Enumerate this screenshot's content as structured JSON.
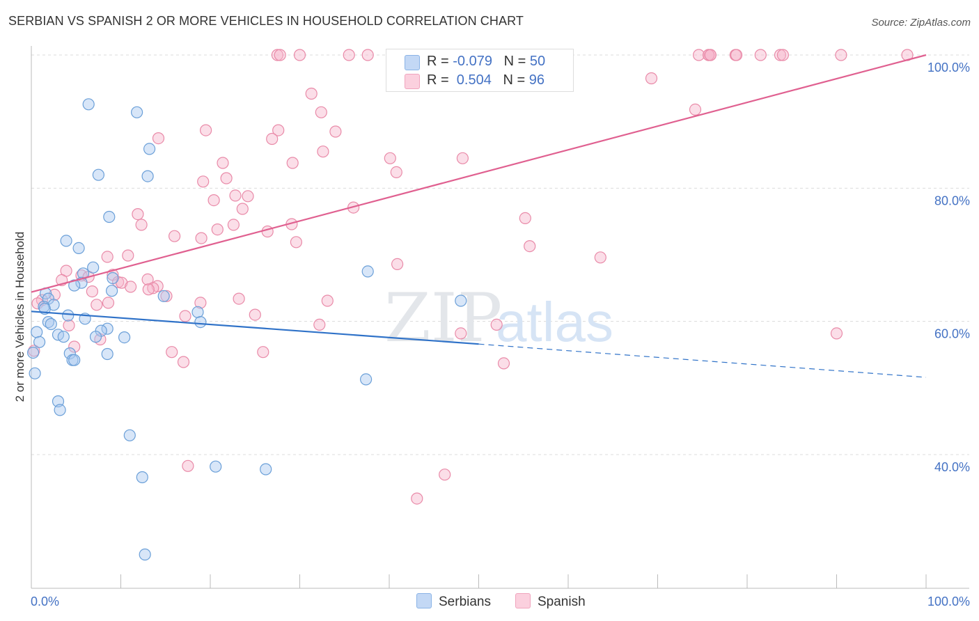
{
  "title": "SERBIAN VS SPANISH 2 OR MORE VEHICLES IN HOUSEHOLD CORRELATION CHART",
  "source": "Source: ZipAtlas.com",
  "watermark": {
    "bold": "ZIP",
    "light": "atlas"
  },
  "legend_top": {
    "rows": [
      {
        "r_label": "R = ",
        "r_value": "-0.079",
        "n_label": "N = ",
        "n_value": "50",
        "color": "#a9c8f0"
      },
      {
        "r_label": "R = ",
        "r_value": " 0.504",
        "n_label": "N = ",
        "n_value": "96",
        "color": "#f7b6cb"
      }
    ]
  },
  "legend_bottom": [
    {
      "label": "Serbians",
      "color": "#a9c8f0"
    },
    {
      "label": "Spanish",
      "color": "#f7b6cb"
    }
  ],
  "chart_data": {
    "type": "scatter",
    "xlabel": "",
    "ylabel": "2 or more Vehicles in Household",
    "xlim": [
      0,
      100
    ],
    "ylim": [
      19.0,
      102.5
    ],
    "x_tick_labels": [
      "0.0%",
      "100.0%"
    ],
    "y_ticks": [
      {
        "value": 40,
        "label": "40.0%"
      },
      {
        "value": 60,
        "label": "60.0%"
      },
      {
        "value": 80,
        "label": "80.0%"
      },
      {
        "value": 100,
        "label": "100.0%"
      }
    ],
    "grid": true,
    "legend": "bottom-center",
    "series": [
      {
        "name": "Serbians",
        "color": "#a9c8f0",
        "stroke": "#6a9fd8",
        "trend": {
          "x0": 0,
          "y0": 61.5,
          "x1": 50,
          "y1": 56.6,
          "dash_to_x": 100,
          "dash_to_y": 51.6,
          "color": "#2f72c8"
        },
        "points": [
          [
            6.4,
            92.6
          ],
          [
            11.8,
            91.4
          ],
          [
            13.2,
            85.9
          ],
          [
            7.5,
            82.0
          ],
          [
            13.0,
            81.8
          ],
          [
            8.7,
            75.7
          ],
          [
            3.9,
            72.1
          ],
          [
            5.3,
            71.0
          ],
          [
            6.9,
            68.1
          ],
          [
            37.6,
            67.5
          ],
          [
            5.8,
            67.2
          ],
          [
            9.1,
            66.5
          ],
          [
            5.6,
            65.8
          ],
          [
            4.8,
            65.4
          ],
          [
            9.0,
            64.6
          ],
          [
            1.6,
            64.2
          ],
          [
            14.8,
            63.8
          ],
          [
            1.9,
            63.4
          ],
          [
            2.5,
            62.5
          ],
          [
            1.4,
            62.2
          ],
          [
            1.5,
            61.9
          ],
          [
            48.0,
            63.1
          ],
          [
            18.6,
            61.4
          ],
          [
            4.1,
            60.9
          ],
          [
            6.0,
            60.4
          ],
          [
            1.9,
            59.9
          ],
          [
            2.2,
            59.6
          ],
          [
            18.9,
            59.9
          ],
          [
            8.5,
            58.9
          ],
          [
            7.8,
            58.6
          ],
          [
            0.6,
            58.4
          ],
          [
            3.0,
            58.0
          ],
          [
            3.6,
            57.7
          ],
          [
            7.2,
            57.7
          ],
          [
            10.4,
            57.6
          ],
          [
            0.9,
            56.9
          ],
          [
            8.5,
            55.1
          ],
          [
            4.3,
            55.2
          ],
          [
            4.6,
            54.2
          ],
          [
            4.8,
            54.2
          ],
          [
            0.4,
            52.2
          ],
          [
            37.4,
            51.3
          ],
          [
            3.0,
            48.0
          ],
          [
            3.2,
            46.7
          ],
          [
            11.0,
            42.9
          ],
          [
            12.4,
            36.6
          ],
          [
            20.6,
            38.2
          ],
          [
            26.2,
            37.8
          ],
          [
            12.7,
            25.0
          ],
          [
            0.2,
            55.3
          ]
        ]
      },
      {
        "name": "Spanish",
        "color": "#f7b6cb",
        "stroke": "#e98aa8",
        "trend": {
          "x0": 0,
          "y0": 64.4,
          "x1": 100,
          "y1": 100.0,
          "color": "#e06090"
        },
        "points": [
          [
            27.5,
            100.0
          ],
          [
            27.8,
            100.0
          ],
          [
            30.0,
            100.0
          ],
          [
            35.5,
            100.0
          ],
          [
            37.6,
            100.0
          ],
          [
            48.2,
            100.0
          ],
          [
            56.0,
            100.0
          ],
          [
            74.6,
            100.0
          ],
          [
            75.7,
            100.0
          ],
          [
            75.9,
            100.0
          ],
          [
            75.7,
            100.0
          ],
          [
            75.9,
            100.0
          ],
          [
            78.7,
            100.0
          ],
          [
            78.8,
            100.0
          ],
          [
            81.5,
            100.0
          ],
          [
            83.7,
            100.0
          ],
          [
            84.0,
            100.0
          ],
          [
            90.5,
            100.0
          ],
          [
            97.9,
            100.0
          ],
          [
            44.2,
            95.5
          ],
          [
            31.3,
            94.2
          ],
          [
            32.4,
            91.4
          ],
          [
            69.3,
            96.5
          ],
          [
            74.2,
            91.8
          ],
          [
            19.5,
            88.7
          ],
          [
            27.6,
            88.7
          ],
          [
            34.0,
            88.5
          ],
          [
            14.2,
            87.5
          ],
          [
            26.9,
            87.4
          ],
          [
            32.6,
            85.5
          ],
          [
            40.1,
            84.5
          ],
          [
            48.2,
            84.5
          ],
          [
            21.4,
            83.8
          ],
          [
            29.2,
            83.8
          ],
          [
            40.8,
            82.4
          ],
          [
            21.8,
            81.5
          ],
          [
            19.2,
            81.0
          ],
          [
            22.8,
            78.9
          ],
          [
            24.2,
            78.8
          ],
          [
            20.4,
            78.2
          ],
          [
            11.9,
            76.1
          ],
          [
            23.6,
            76.9
          ],
          [
            36.0,
            77.1
          ],
          [
            55.2,
            75.5
          ],
          [
            12.3,
            74.5
          ],
          [
            22.6,
            74.5
          ],
          [
            29.1,
            74.6
          ],
          [
            20.8,
            73.8
          ],
          [
            26.4,
            73.5
          ],
          [
            16.0,
            72.8
          ],
          [
            19.0,
            72.5
          ],
          [
            29.6,
            71.9
          ],
          [
            55.7,
            71.3
          ],
          [
            8.5,
            69.7
          ],
          [
            10.8,
            69.9
          ],
          [
            63.6,
            69.6
          ],
          [
            40.9,
            68.6
          ],
          [
            3.9,
            67.6
          ],
          [
            5.6,
            66.9
          ],
          [
            9.1,
            67.0
          ],
          [
            6.4,
            66.7
          ],
          [
            3.4,
            66.2
          ],
          [
            13.0,
            66.3
          ],
          [
            9.7,
            65.9
          ],
          [
            10.1,
            65.8
          ],
          [
            11.1,
            65.2
          ],
          [
            14.1,
            65.3
          ],
          [
            13.6,
            65.0
          ],
          [
            13.1,
            64.8
          ],
          [
            6.8,
            64.5
          ],
          [
            2.6,
            64.0
          ],
          [
            1.2,
            63.2
          ],
          [
            0.7,
            62.7
          ],
          [
            15.1,
            63.8
          ],
          [
            23.2,
            63.4
          ],
          [
            33.1,
            63.1
          ],
          [
            7.3,
            62.5
          ],
          [
            8.6,
            62.8
          ],
          [
            18.9,
            62.8
          ],
          [
            17.2,
            60.8
          ],
          [
            25.0,
            61.0
          ],
          [
            4.2,
            59.4
          ],
          [
            32.2,
            59.5
          ],
          [
            52.0,
            59.5
          ],
          [
            48.0,
            58.2
          ],
          [
            90.0,
            58.2
          ],
          [
            7.7,
            57.3
          ],
          [
            4.8,
            56.2
          ],
          [
            15.7,
            55.4
          ],
          [
            25.9,
            55.4
          ],
          [
            17.0,
            53.9
          ],
          [
            52.8,
            53.7
          ],
          [
            17.5,
            38.3
          ],
          [
            46.2,
            37.0
          ],
          [
            43.1,
            33.4
          ],
          [
            0.3,
            55.6
          ]
        ]
      }
    ]
  }
}
